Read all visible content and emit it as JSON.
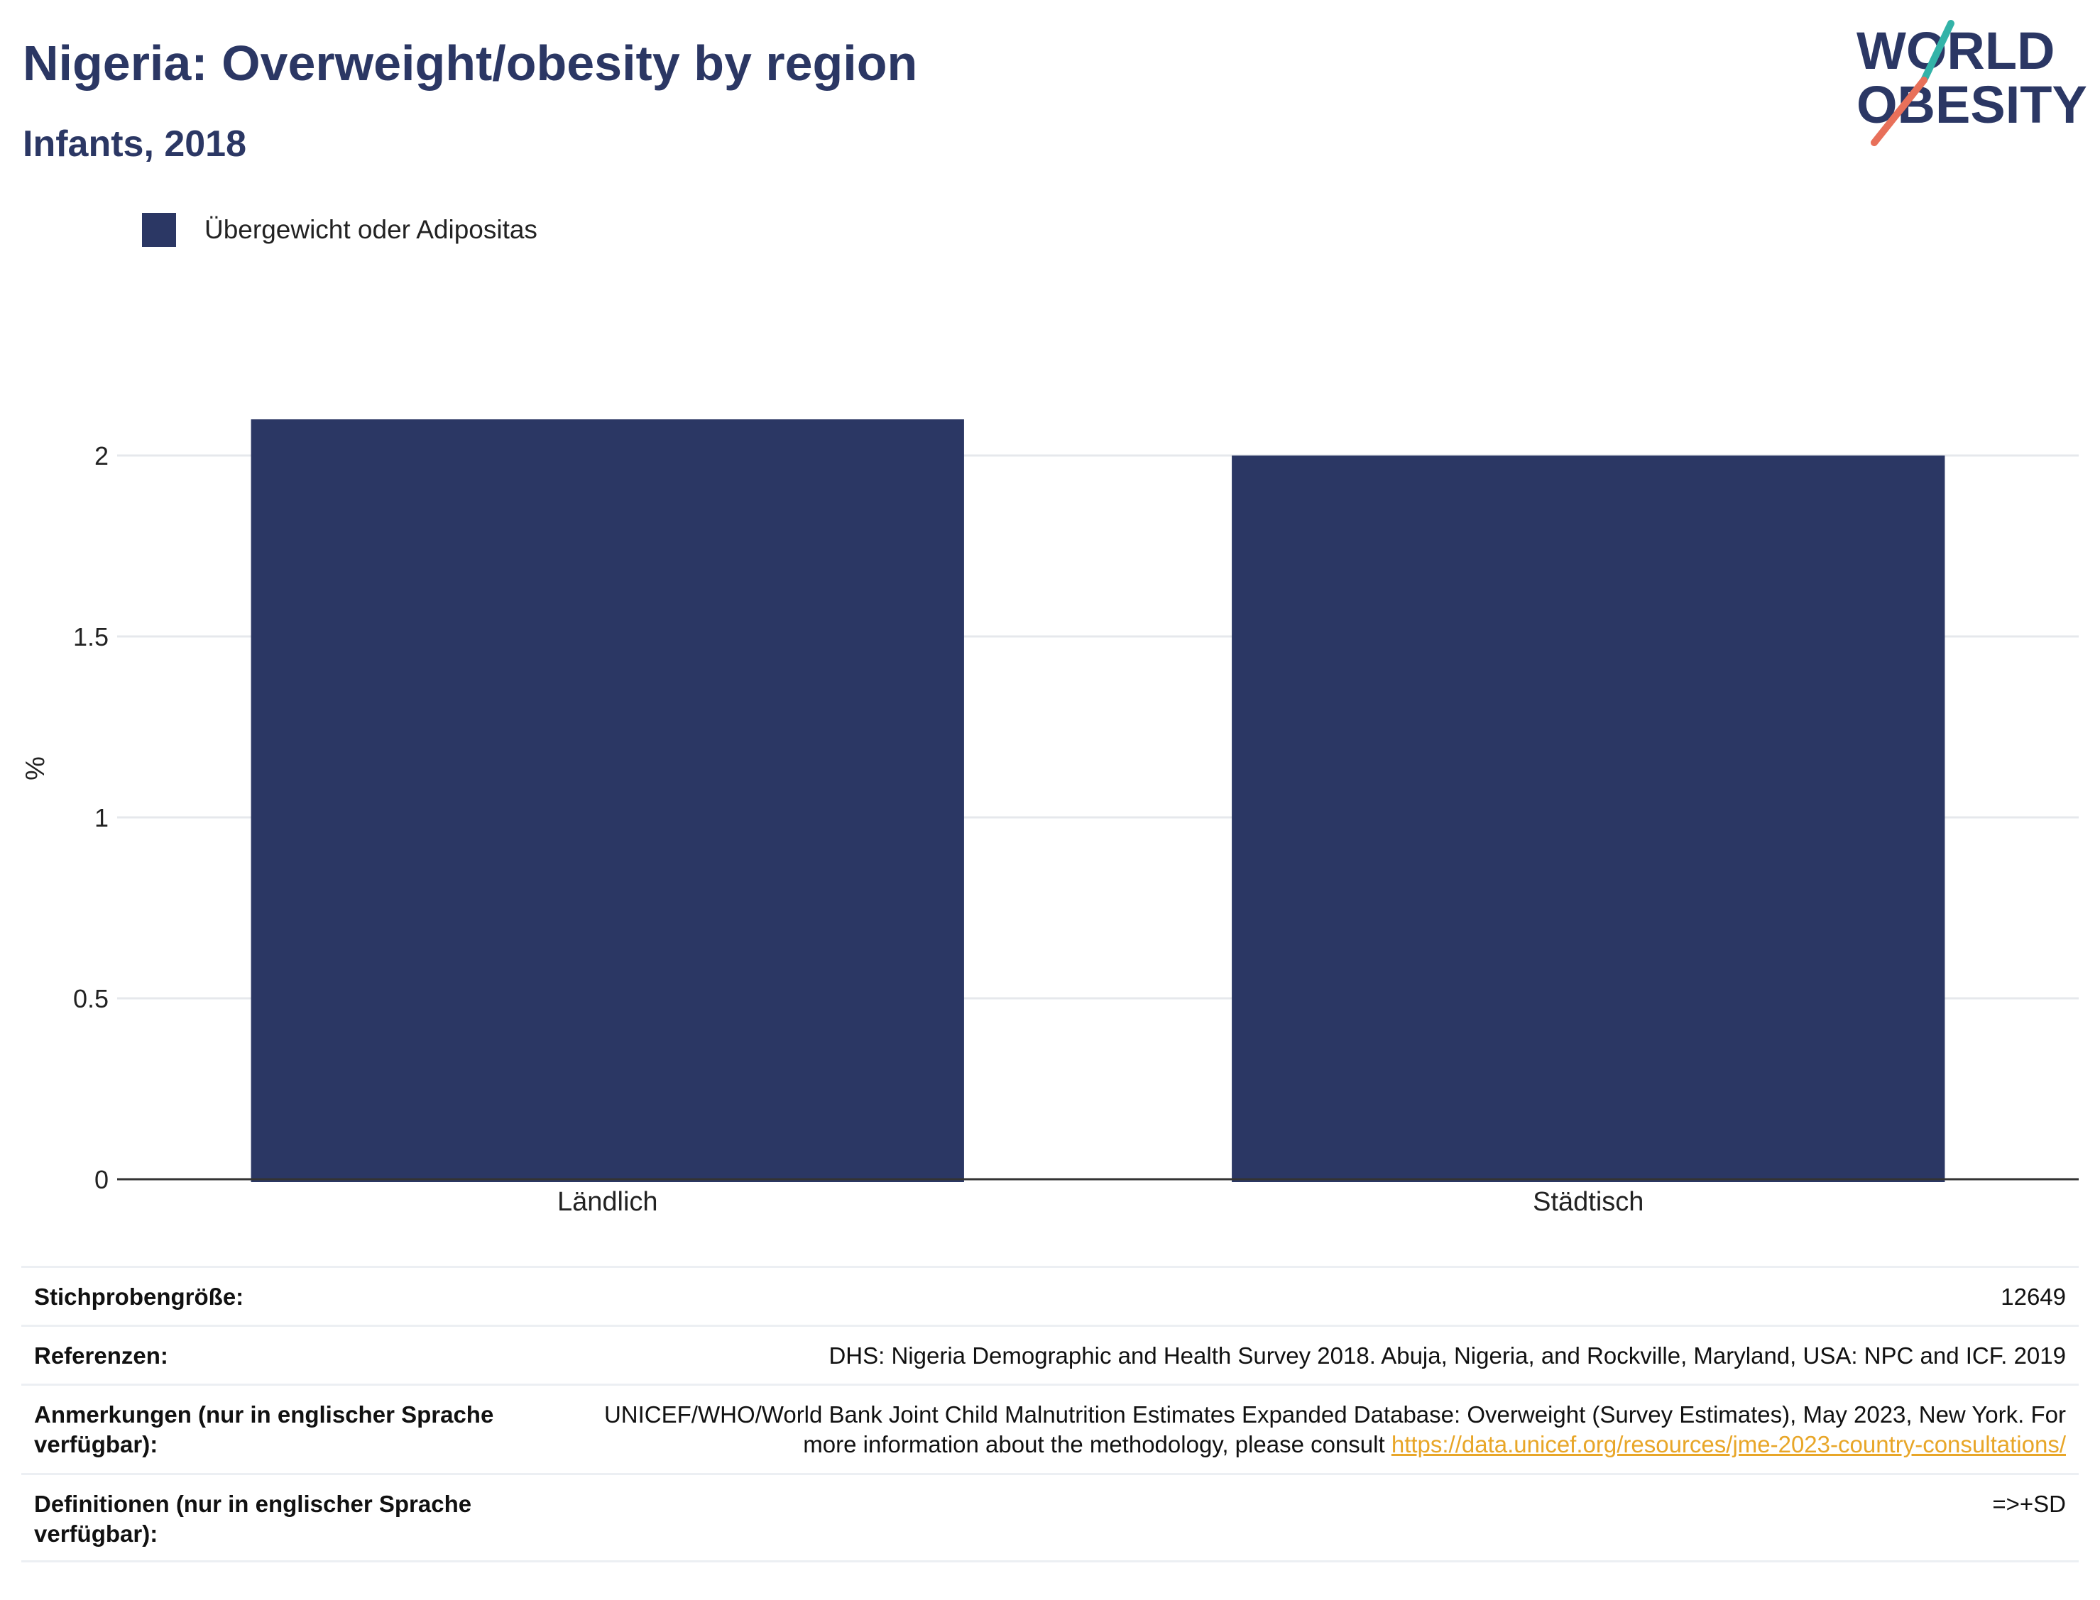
{
  "header": {
    "title": "Nigeria: Overweight/obesity by region",
    "subtitle": "Infants, 2018"
  },
  "logo": {
    "line1": "WORLD",
    "line2": "OBESITY",
    "colors": {
      "text": "#2b3764",
      "slash_top": "#33b3a8",
      "slash_bottom": "#e8705a"
    }
  },
  "chart_data": {
    "type": "bar",
    "categories": [
      "Ländlich",
      "Städtisch"
    ],
    "series": [
      {
        "name": "Übergewicht oder Adipositas",
        "values": [
          2.1,
          2.0
        ],
        "color": "#2b3764"
      }
    ],
    "xlabel": "",
    "ylabel": "%",
    "ylim": [
      0,
      2.2
    ],
    "yticks": [
      0,
      0.5,
      1,
      1.5,
      2
    ],
    "ytick_labels": [
      "0",
      "0.5",
      "1",
      "1.5",
      "2"
    ],
    "grid": true,
    "legend": "top-left"
  },
  "notes": [
    {
      "label": "Stichprobengröße:",
      "value": "12649"
    },
    {
      "label": "Referenzen:",
      "value": "DHS: Nigeria Demographic and Health Survey 2018. Abuja, Nigeria, and Rockville, Maryland, USA: NPC and ICF. 2019"
    },
    {
      "label": "Anmerkungen (nur in englischer Sprache verfügbar):",
      "value": "UNICEF/WHO/World Bank Joint Child Malnutrition Estimates Expanded Database: Overweight (Survey Estimates), May 2023, New York. For more information about the methodology, please consult",
      "link": "https://data.unicef.org/resources/jme-2023-country-consultations/"
    },
    {
      "label": "Definitionen (nur in englischer Sprache verfügbar):",
      "value": "=>+SD"
    }
  ]
}
